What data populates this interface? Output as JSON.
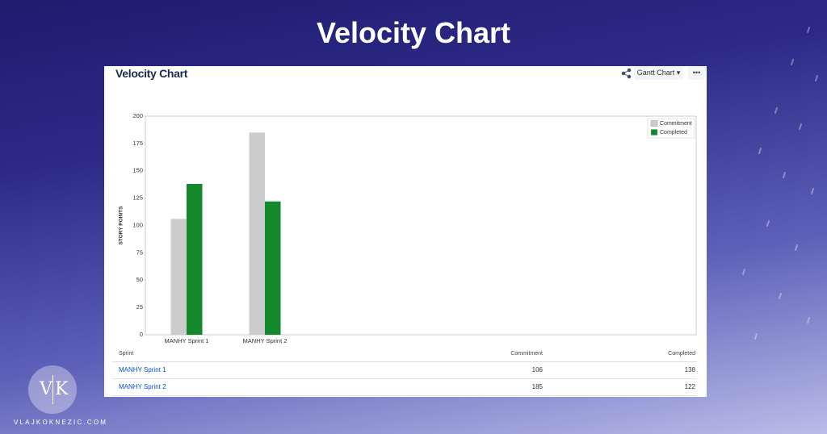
{
  "banner_title": "Velocity Chart",
  "panel": {
    "title": "Velocity Chart",
    "view_button": "Gantt Chart",
    "more_button": "•••"
  },
  "chart_data": {
    "type": "bar",
    "y_label": "STORY POINTS",
    "categories": [
      "MANHY Sprint 1",
      "MANHY Sprint 2"
    ],
    "series": [
      {
        "name": "Commitment",
        "color": "#cccccc",
        "values": [
          106,
          185
        ]
      },
      {
        "name": "Completed",
        "color": "#14892c",
        "values": [
          138,
          122
        ]
      }
    ],
    "ylim": [
      0,
      200
    ],
    "yticks": [
      0,
      25,
      50,
      75,
      100,
      125,
      150,
      175,
      200
    ],
    "grid": false,
    "legend": "top-right"
  },
  "table": {
    "columns": [
      "Sprint",
      "Commitment",
      "Completed"
    ],
    "rows": [
      [
        "MANHY Sprint 1",
        "106",
        "138"
      ],
      [
        "MANHY Sprint 2",
        "185",
        "122"
      ]
    ]
  },
  "logo": {
    "left": "V",
    "right": "K"
  },
  "footer": "VLAJKOKNEZIC.COM"
}
